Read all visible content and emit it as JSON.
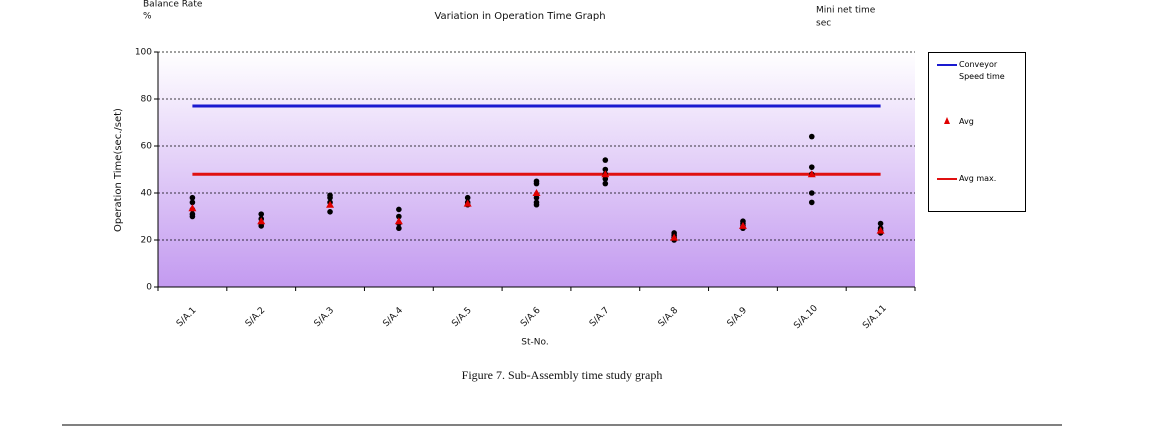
{
  "chart_data": {
    "type": "scatter",
    "title": "Variation in Operation Time Graph",
    "left_note": [
      "Balance Rate",
      "%"
    ],
    "right_note": [
      "Mini net time",
      "sec"
    ],
    "ylabel": "Operation Time(sec./set)",
    "xlabel": "St-No.",
    "caption": "Figure 7. Sub-Assembly time study graph",
    "categories": [
      "S/A.1",
      "S/A.2",
      "S/A.3",
      "S/A.4",
      "S/A.5",
      "S/A.6",
      "S/A.7",
      "S/A.8",
      "S/A.9",
      "S/A.10",
      "S/A.11"
    ],
    "measurements": [
      [
        38,
        36,
        33,
        31,
        30
      ],
      [
        31,
        29,
        27,
        26
      ],
      [
        39,
        38,
        36,
        32
      ],
      [
        33,
        30,
        27,
        25
      ],
      [
        38,
        36,
        35
      ],
      [
        45,
        44,
        38,
        36,
        35
      ],
      [
        54,
        50,
        48,
        46,
        44
      ],
      [
        23,
        22,
        21,
        20
      ],
      [
        28,
        27,
        26,
        25
      ],
      [
        64,
        51,
        48,
        40,
        36
      ],
      [
        27,
        25,
        24,
        23
      ]
    ],
    "measurement_color": "#000000",
    "avg": {
      "name": "Avg",
      "color": "#e00000",
      "values": [
        33.5,
        28,
        35,
        28,
        35.5,
        40,
        48,
        21,
        26,
        48,
        24
      ]
    },
    "reference_lines": [
      {
        "name": "Conveyor Speed time",
        "color": "#1a1ad0",
        "value": 77
      },
      {
        "name": "Avg max.",
        "color": "#e01010",
        "value": 48
      }
    ],
    "ylim": [
      0,
      100
    ],
    "yticks": [
      0,
      20,
      40,
      60,
      80,
      100
    ],
    "grid": true
  }
}
